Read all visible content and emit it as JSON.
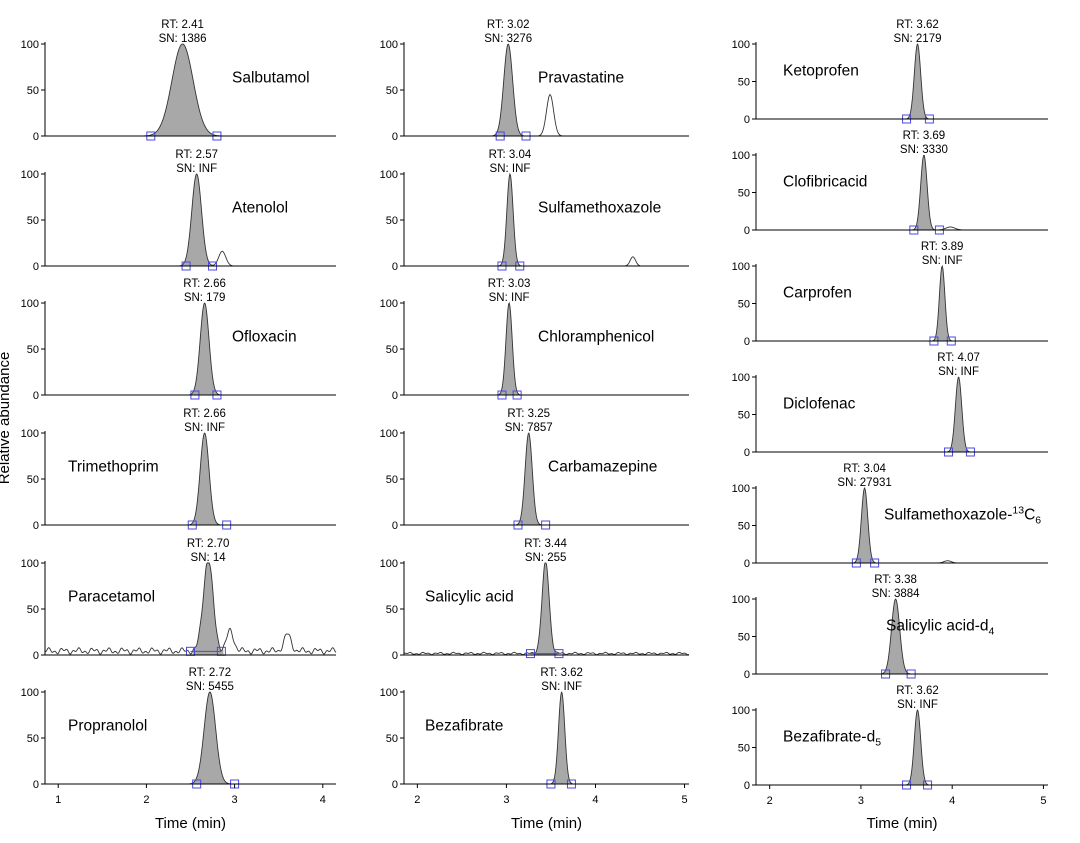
{
  "figure": {
    "ylabel": "Relative abundance",
    "colors": {
      "peak_fill": "#a8a8a8",
      "trace": "#333333",
      "axis": "#000000",
      "marker": "#4a4ae0"
    }
  },
  "chart_data": [
    {
      "type": "area",
      "xlabel": "Time (min)",
      "xlim": [
        0.85,
        4.15
      ],
      "xticks": [
        1,
        2,
        3,
        4
      ],
      "ylim": [
        0,
        100
      ],
      "yticks": [
        0,
        50,
        100
      ],
      "panels": [
        {
          "name": "Salbutamol",
          "rt": "2.41",
          "sn": "1386",
          "rt_value": 2.41,
          "width": 0.12,
          "secondary": [],
          "noise": 0,
          "markers": [
            2.05,
            2.8
          ]
        },
        {
          "name": "Atenolol",
          "rt": "2.57",
          "sn": "INF",
          "rt_value": 2.57,
          "width": 0.055,
          "secondary": [
            [
              2.86,
              16,
              0.04
            ]
          ],
          "noise": 0,
          "markers": [
            2.45,
            2.75
          ]
        },
        {
          "name": "Ofloxacin",
          "rt": "2.66",
          "sn": "179",
          "rt_value": 2.66,
          "width": 0.05,
          "secondary": [],
          "noise": 0,
          "markers": [
            2.55,
            2.8
          ]
        },
        {
          "name": "Trimethoprim",
          "rt": "2.66",
          "sn": "INF",
          "rt_value": 2.66,
          "width": 0.05,
          "secondary": [],
          "noise": 0,
          "markers": [
            2.52,
            2.91
          ]
        },
        {
          "name": "Paracetamol",
          "rt": "2.70",
          "sn": "14",
          "rt_value": 2.7,
          "width": 0.055,
          "secondary": [
            [
              2.95,
              22,
              0.04
            ],
            [
              3.6,
              18,
              0.04
            ]
          ],
          "noise": 8,
          "markers": [
            2.5,
            2.85
          ]
        },
        {
          "name": "Propranolol",
          "rt": "2.72",
          "sn": "5455",
          "rt_value": 2.72,
          "width": 0.065,
          "secondary": [],
          "noise": 0,
          "markers": [
            2.57,
            3.0
          ]
        }
      ]
    },
    {
      "type": "area",
      "xlabel": "Time (min)",
      "xlim": [
        1.85,
        5.05
      ],
      "xticks": [
        2,
        3,
        4,
        5
      ],
      "ylim": [
        0,
        100
      ],
      "yticks": [
        0,
        50,
        100
      ],
      "panels": [
        {
          "name": "Pravastatine",
          "rt": "3.02",
          "sn": "3276",
          "rt_value": 3.02,
          "width": 0.05,
          "secondary": [
            [
              3.49,
              45,
              0.04
            ]
          ],
          "noise": 0,
          "markers": [
            2.93,
            3.22
          ]
        },
        {
          "name": "Sulfamethoxazole",
          "rt": "3.04",
          "sn": "INF",
          "rt_value": 3.04,
          "width": 0.035,
          "secondary": [
            [
              4.42,
              10,
              0.03
            ]
          ],
          "noise": 0,
          "markers": [
            2.95,
            3.15
          ]
        },
        {
          "name": "Chloramphenicol",
          "rt": "3.03",
          "sn": "INF",
          "rt_value": 3.03,
          "width": 0.035,
          "secondary": [],
          "noise": 0,
          "markers": [
            2.95,
            3.12
          ]
        },
        {
          "name": "Carbamazepine",
          "rt": "3.25",
          "sn": "7857",
          "rt_value": 3.25,
          "width": 0.04,
          "secondary": [],
          "noise": 0,
          "markers": [
            3.13,
            3.44
          ]
        },
        {
          "name": "Salicylic acid",
          "rt": "3.44",
          "sn": "255",
          "rt_value": 3.44,
          "width": 0.04,
          "secondary": [],
          "noise": 3,
          "markers": [
            3.27,
            3.59
          ]
        },
        {
          "name": "Bezafibrate",
          "rt": "3.62",
          "sn": "INF",
          "rt_value": 3.62,
          "width": 0.035,
          "secondary": [],
          "noise": 0,
          "markers": [
            3.5,
            3.73
          ]
        }
      ]
    },
    {
      "type": "area",
      "xlabel": "Time (min)",
      "xlim": [
        1.85,
        5.05
      ],
      "xticks": [
        2,
        3,
        4,
        5
      ],
      "ylim": [
        0,
        100
      ],
      "yticks": [
        0,
        50,
        100
      ],
      "panels": [
        {
          "name": "Ketoprofen",
          "rt": "3.62",
          "sn": "2179",
          "rt_value": 3.62,
          "width": 0.035,
          "secondary": [],
          "noise": 0,
          "markers": [
            3.5,
            3.75
          ]
        },
        {
          "name": "Clofibricacid",
          "rt": "3.69",
          "sn": "3330",
          "rt_value": 3.69,
          "width": 0.035,
          "secondary": [
            [
              3.98,
              4,
              0.05
            ]
          ],
          "noise": 0,
          "markers": [
            3.58,
            3.86
          ]
        },
        {
          "name": "Carprofen",
          "rt": "3.89",
          "sn": "INF",
          "rt_value": 3.89,
          "width": 0.03,
          "secondary": [],
          "noise": 0,
          "markers": [
            3.8,
            3.99
          ]
        },
        {
          "name": "Diclofenac",
          "rt": "4.07",
          "sn": "INF",
          "rt_value": 4.07,
          "width": 0.035,
          "secondary": [],
          "noise": 0,
          "markers": [
            3.96,
            4.2
          ]
        },
        {
          "name": "Sulfamethoxazole-",
          "name_sup": "13",
          "name_tail": "C",
          "name_sub": "6",
          "rt": "3.04",
          "sn": "27931",
          "rt_value": 3.04,
          "width": 0.035,
          "secondary": [
            [
              3.95,
              3,
              0.04
            ]
          ],
          "noise": 0,
          "markers": [
            2.95,
            3.15
          ]
        },
        {
          "name": "Salicylic acid-d",
          "name_sub": "4",
          "rt": "3.38",
          "sn": "3884",
          "rt_value": 3.38,
          "width": 0.045,
          "secondary": [],
          "noise": 0,
          "markers": [
            3.27,
            3.55
          ]
        },
        {
          "name": "Bezafibrate-d",
          "name_sub": "5",
          "rt": "3.62",
          "sn": "INF",
          "rt_value": 3.62,
          "width": 0.035,
          "secondary": [],
          "noise": 0,
          "markers": [
            3.5,
            3.73
          ]
        }
      ]
    }
  ]
}
